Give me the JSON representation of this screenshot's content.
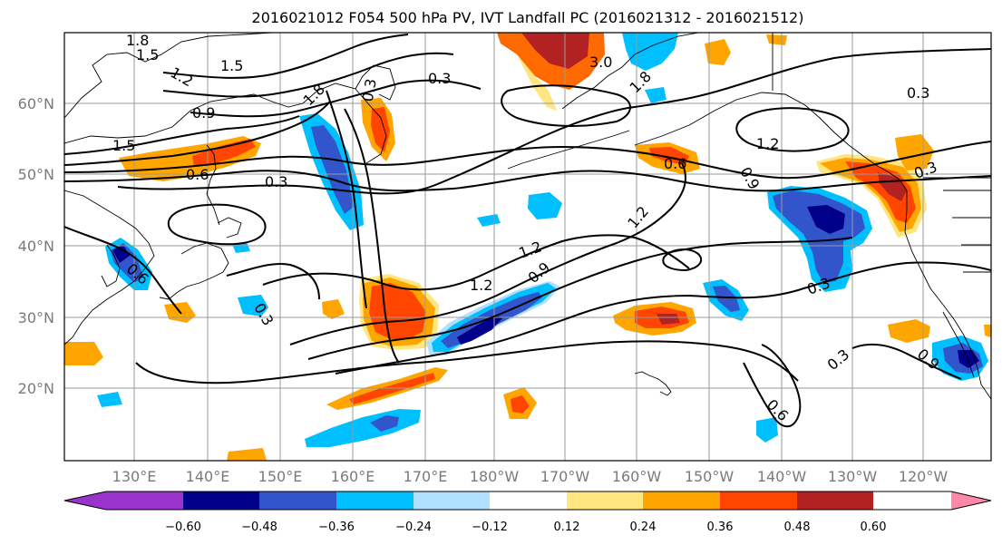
{
  "title": "2016021012 F054 500 hPa PV, IVT Landfall PC (2016021312 - 2016021512)",
  "axes": {
    "lat_labels": [
      "60°N",
      "50°N",
      "40°N",
      "30°N",
      "20°N"
    ],
    "lon_labels": [
      "130°E",
      "140°E",
      "150°E",
      "160°E",
      "170°E",
      "180°W",
      "170°W",
      "160°W",
      "150°W",
      "140°W",
      "130°W",
      "120°W"
    ]
  },
  "colorbar": {
    "tick_labels": [
      "−0.60",
      "−0.48",
      "−0.36",
      "−0.24",
      "−0.12",
      "0.12",
      "0.24",
      "0.36",
      "0.48",
      "0.60"
    ],
    "colors": [
      "#9933cc",
      "#00008b",
      "#3355cc",
      "#00bfff",
      "#b0e0ff",
      "#ffffff",
      "#ffe680",
      "#ffa500",
      "#ff4500",
      "#b22222",
      "#ff88aa"
    ]
  },
  "contour_labels": {
    "c_1_8_a": "1.8",
    "c_1_5_a": "1.5",
    "c_1_2_a": "1.2",
    "c_1_5_b": "1.5",
    "c_0_9_a": "0.9",
    "c_1_8_b": "1.8",
    "c_0_3_a": "0.3",
    "c_1_5_c": "1.5",
    "c_0_6_a": "0.6",
    "c_0_3_b": "0.3",
    "c_1_2_b": "1.2",
    "c_0_6_b": "0.6",
    "c_0_9_b": "0.9",
    "c_1_2_c": "1.2",
    "c_1_2_d": "1.2",
    "c_0_9_c": "0.9",
    "c_1_2_e": "1.2",
    "c_0_3_c": "0.3",
    "c_0_6_c": "0.6",
    "c_0_3_d": "0.3",
    "c_0_3_e": "0.3",
    "c_0_3_f": "0.3",
    "c_0_3_g": "0.3",
    "c_0_3_h": "0.3",
    "c_0_6_d": "0.6",
    "c_0_9_d": "0.9",
    "c_1_8_c": "1.8",
    "c_3_0": "3.0"
  }
}
